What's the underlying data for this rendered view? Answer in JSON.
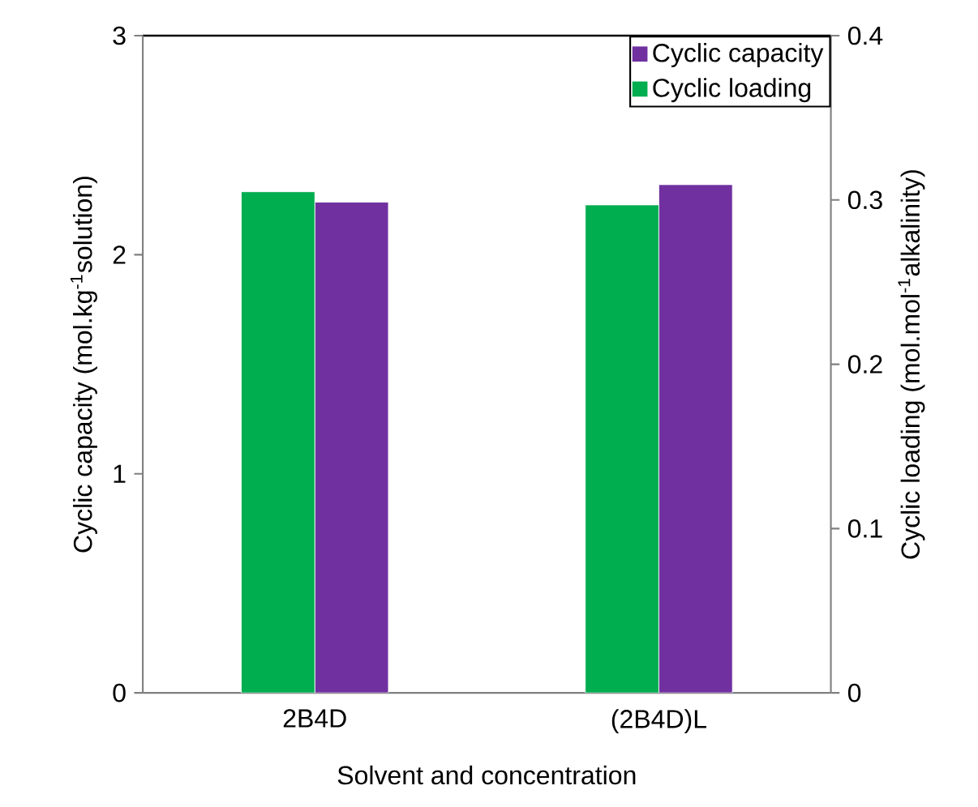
{
  "chart_data": {
    "type": "bar",
    "xlabel": "Solvent and concentration",
    "ylabel": "Cyclic capacity (mol.kg$^{-1}$solution)",
    "y2label": "Cyclic loading (mol.mol$^{-1}$alkalinity)",
    "categories": [
      "2B4D",
      "(2B4D)L"
    ],
    "series": [
      {
        "name": "Cyclic loading",
        "color": "#00ad4f",
        "values": [
          0.305,
          0.297
        ],
        "axis": "y2"
      },
      {
        "name": "Cyclic capacity",
        "color": "#7030a0",
        "values": [
          2.24,
          2.32
        ]
      }
    ],
    "ylim": [
      0,
      3
    ],
    "yticks": [
      0,
      1,
      2,
      3
    ],
    "y2lim": [
      0,
      0.4
    ],
    "y2ticks": [
      0,
      0.1,
      0.2,
      0.3,
      0.4
    ],
    "grid": false,
    "legend": "top right"
  }
}
